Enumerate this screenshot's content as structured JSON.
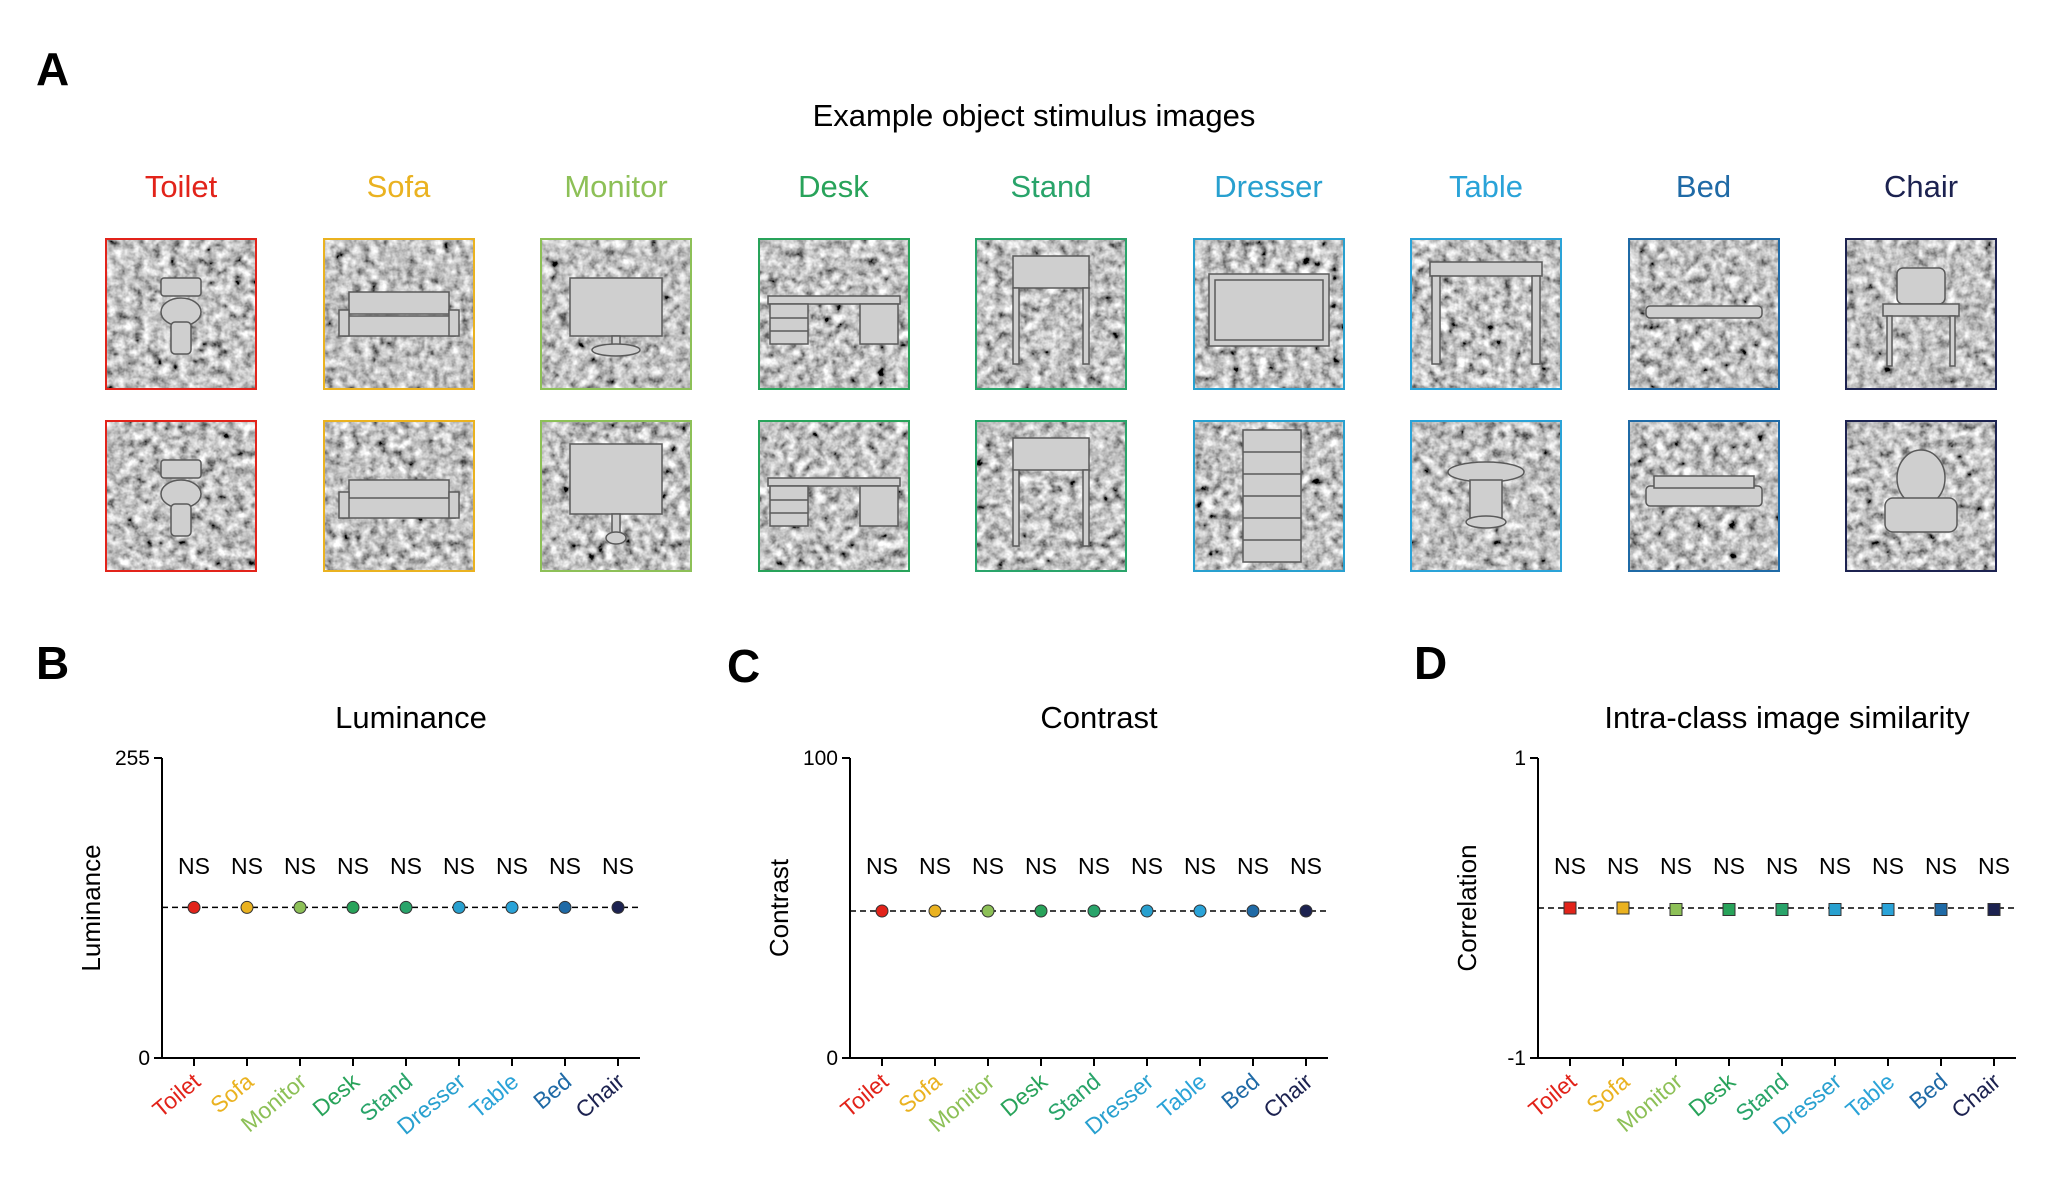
{
  "panel_labels": {
    "a": "A",
    "b": "B",
    "c": "C",
    "d": "D"
  },
  "stimulus_title": "Example object stimulus images",
  "categories": [
    {
      "name": "Toilet",
      "color": "#e2231a",
      "icon": "toilet-icon"
    },
    {
      "name": "Sofa",
      "color": "#eab220",
      "icon": "sofa-icon"
    },
    {
      "name": "Monitor",
      "color": "#8dc057",
      "icon": "monitor-icon"
    },
    {
      "name": "Desk",
      "color": "#28a35a",
      "icon": "desk-icon"
    },
    {
      "name": "Stand",
      "color": "#29a46a",
      "icon": "nightstand-icon"
    },
    {
      "name": "Dresser",
      "color": "#28a0cf",
      "icon": "dresser-icon"
    },
    {
      "name": "Table",
      "color": "#2aa3d8",
      "icon": "table-icon"
    },
    {
      "name": "Bed",
      "color": "#1f6aa6",
      "icon": "bed-icon"
    },
    {
      "name": "Chair",
      "color": "#1c2250",
      "icon": "chair-icon"
    }
  ],
  "chart_data": [
    {
      "id": "luminance",
      "type": "scatter",
      "title": "Luminance",
      "ylabel": "Luminance",
      "ylim": [
        0,
        255
      ],
      "yticks": [
        0,
        255
      ],
      "reference_line": 128,
      "marker": "circle",
      "categories": [
        "Toilet",
        "Sofa",
        "Monitor",
        "Desk",
        "Stand",
        "Dresser",
        "Table",
        "Bed",
        "Chair"
      ],
      "values": [
        128,
        128,
        128,
        128,
        128,
        128,
        128,
        128,
        128
      ],
      "annotations": [
        "NS",
        "NS",
        "NS",
        "NS",
        "NS",
        "NS",
        "NS",
        "NS",
        "NS"
      ]
    },
    {
      "id": "contrast",
      "type": "scatter",
      "title": "Contrast",
      "ylabel": "Contrast",
      "ylim": [
        0,
        100
      ],
      "yticks": [
        0,
        100
      ],
      "reference_line": 49,
      "marker": "circle",
      "categories": [
        "Toilet",
        "Sofa",
        "Monitor",
        "Desk",
        "Stand",
        "Dresser",
        "Table",
        "Bed",
        "Chair"
      ],
      "values": [
        49,
        49,
        49,
        49,
        49,
        49,
        49,
        49,
        49
      ],
      "annotations": [
        "NS",
        "NS",
        "NS",
        "NS",
        "NS",
        "NS",
        "NS",
        "NS",
        "NS"
      ]
    },
    {
      "id": "similarity",
      "type": "scatter",
      "title": "Intra-class image similarity",
      "ylabel": "Correlation",
      "ylim": [
        -1,
        1
      ],
      "yticks": [
        -1,
        1
      ],
      "reference_line": 0.0,
      "marker": "square",
      "categories": [
        "Toilet",
        "Sofa",
        "Monitor",
        "Desk",
        "Stand",
        "Dresser",
        "Table",
        "Bed",
        "Chair"
      ],
      "values": [
        0.0,
        0.0,
        -0.01,
        -0.01,
        -0.01,
        -0.01,
        -0.01,
        -0.01,
        -0.01
      ],
      "error": [
        0.03,
        0.03,
        0.03,
        0.03,
        0.03,
        0.03,
        0.03,
        0.03,
        0.03
      ],
      "annotations": [
        "NS",
        "NS",
        "NS",
        "NS",
        "NS",
        "NS",
        "NS",
        "NS",
        "NS"
      ]
    }
  ]
}
